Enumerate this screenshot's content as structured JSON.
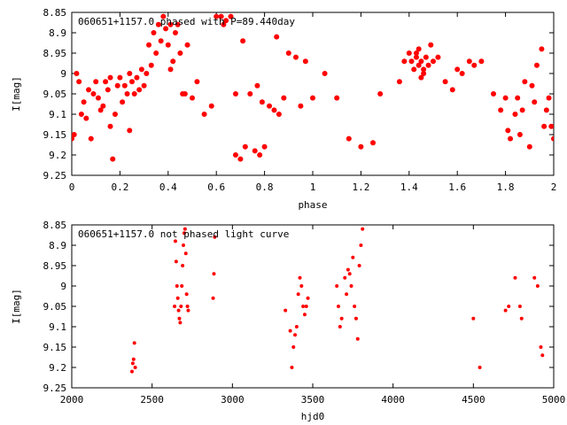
{
  "colors": {
    "points": "#ff0000",
    "axes": "#000000",
    "background": "#ffffff"
  },
  "chart_data": [
    {
      "type": "scatter",
      "title": "060651+1157.0 phased with P=89.440day",
      "xlabel": "phase",
      "ylabel": "I[mag]",
      "xlim": [
        0,
        2
      ],
      "ylim": [
        8.85,
        9.25
      ],
      "y_inverted": true,
      "grid": false,
      "xticks": [
        "0",
        "0.2",
        "0.4",
        "0.6",
        "0.8",
        "1",
        "1.2",
        "1.4",
        "1.6",
        "1.8",
        "2"
      ],
      "yticks": [
        "8.85",
        "8.9",
        "8.95",
        "9",
        "9.05",
        "9.1",
        "9.15",
        "9.2",
        "9.25"
      ],
      "x": [
        0.0,
        0.01,
        0.03,
        0.05,
        0.06,
        0.08,
        0.09,
        0.1,
        0.12,
        0.13,
        0.14,
        0.15,
        0.16,
        0.17,
        0.18,
        0.19,
        0.2,
        0.21,
        0.22,
        0.23,
        0.24,
        0.25,
        0.26,
        0.27,
        0.28,
        0.3,
        0.31,
        0.32,
        0.33,
        0.34,
        0.35,
        0.36,
        0.37,
        0.38,
        0.39,
        0.4,
        0.41,
        0.42,
        0.43,
        0.44,
        0.45,
        0.46,
        0.48,
        0.5,
        0.55,
        0.58,
        0.6,
        0.62,
        0.64,
        0.66,
        0.68,
        0.7,
        0.72,
        0.74,
        0.76,
        0.78,
        0.8,
        0.82,
        0.84,
        0.86,
        0.88,
        0.9,
        0.93,
        0.95,
        1.0,
        1.1,
        1.15,
        1.2,
        1.25,
        1.28,
        1.36,
        1.4,
        1.41,
        1.42,
        1.43,
        1.44,
        1.45,
        1.46,
        1.47,
        1.48,
        1.5,
        1.52,
        1.55,
        1.6,
        1.65,
        1.7,
        1.75,
        1.78,
        1.8,
        1.81,
        1.82,
        1.85,
        1.86,
        1.88,
        1.9,
        1.92,
        1.93,
        1.95,
        1.97,
        1.99,
        2.0,
        0.02,
        0.04,
        0.07,
        0.11,
        0.16,
        0.24,
        0.29,
        0.41,
        0.47,
        0.52,
        0.63,
        0.68,
        0.71,
        0.77,
        0.79,
        0.85,
        0.97,
        1.05,
        1.38,
        1.43,
        1.44,
        1.45,
        1.46,
        1.49,
        1.58,
        1.62,
        1.67,
        1.84,
        1.87,
        1.91,
        1.96,
        1.98
      ],
      "y": [
        9.16,
        9.15,
        9.02,
        9.07,
        9.11,
        9.16,
        9.05,
        9.02,
        9.09,
        9.08,
        9.02,
        9.04,
        9.13,
        9.21,
        9.1,
        9.03,
        9.01,
        9.07,
        9.03,
        9.05,
        9.0,
        9.02,
        9.05,
        9.01,
        9.04,
        9.03,
        9.0,
        8.93,
        8.98,
        8.9,
        8.95,
        8.88,
        8.92,
        8.86,
        8.89,
        8.93,
        8.88,
        8.97,
        8.9,
        8.88,
        8.95,
        9.05,
        8.93,
        9.06,
        9.1,
        9.08,
        8.86,
        8.86,
        8.87,
        8.86,
        9.2,
        9.21,
        9.18,
        9.05,
        9.19,
        9.2,
        9.18,
        9.08,
        9.09,
        9.1,
        9.06,
        8.95,
        8.96,
        9.08,
        9.06,
        9.06,
        9.16,
        9.18,
        9.17,
        9.05,
        9.02,
        8.95,
        8.97,
        8.99,
        8.96,
        8.94,
        8.97,
        9.0,
        8.96,
        8.98,
        8.97,
        8.96,
        9.02,
        8.99,
        8.97,
        8.97,
        9.05,
        9.09,
        9.06,
        9.14,
        9.16,
        9.06,
        9.15,
        9.02,
        9.18,
        9.07,
        8.98,
        8.94,
        9.09,
        9.13,
        9.16,
        9.0,
        9.1,
        9.04,
        9.06,
        9.01,
        9.14,
        8.99,
        8.99,
        9.05,
        9.02,
        8.88,
        9.05,
        8.92,
        9.03,
        9.07,
        8.91,
        8.97,
        9.0,
        8.97,
        8.95,
        8.98,
        9.01,
        8.99,
        8.93,
        9.04,
        9.0,
        8.98,
        9.1,
        9.09,
        9.03,
        9.13,
        9.06
      ]
    },
    {
      "type": "scatter",
      "title": "060651+1157.0 not phased light curve",
      "xlabel": "hjd0",
      "ylabel": "I[mag]",
      "xlim": [
        2000,
        5000
      ],
      "ylim": [
        8.85,
        9.25
      ],
      "y_inverted": true,
      "grid": false,
      "xticks": [
        "2000",
        "2500",
        "3000",
        "3500",
        "4000",
        "4500",
        "5000"
      ],
      "yticks": [
        "8.85",
        "8.9",
        "8.95",
        "9",
        "9.05",
        "9.1",
        "9.15",
        "9.2",
        "9.25"
      ],
      "x": [
        2375,
        2380,
        2385,
        2390,
        2395,
        2640,
        2645,
        2650,
        2655,
        2660,
        2665,
        2670,
        2675,
        2680,
        2685,
        2690,
        2695,
        2700,
        2705,
        2710,
        2715,
        2720,
        2725,
        2880,
        2885,
        2890,
        3330,
        3360,
        3370,
        3380,
        3390,
        3400,
        3410,
        3420,
        3430,
        3440,
        3450,
        3460,
        3470,
        3650,
        3660,
        3670,
        3680,
        3700,
        3710,
        3720,
        3730,
        3740,
        3750,
        3760,
        3770,
        3780,
        3790,
        3800,
        3810,
        4500,
        4540,
        4700,
        4720,
        4760,
        4790,
        4800,
        4880,
        4900,
        4920,
        4930
      ],
      "y": [
        9.21,
        9.19,
        9.18,
        9.14,
        9.2,
        9.05,
        8.89,
        8.94,
        9.0,
        9.03,
        9.06,
        9.08,
        9.09,
        9.05,
        9.0,
        8.95,
        8.9,
        8.87,
        8.86,
        8.92,
        9.02,
        9.05,
        9.06,
        9.03,
        8.97,
        8.88,
        9.06,
        9.11,
        9.2,
        9.15,
        9.12,
        9.1,
        9.02,
        8.98,
        9.0,
        9.05,
        9.07,
        9.05,
        9.03,
        9.0,
        9.05,
        9.1,
        9.08,
        8.98,
        9.02,
        8.96,
        8.97,
        9.0,
        8.93,
        9.05,
        9.08,
        9.13,
        8.95,
        8.9,
        8.86,
        9.08,
        9.2,
        9.06,
        9.05,
        8.98,
        9.05,
        9.08,
        8.98,
        9.0,
        9.15,
        9.17
      ]
    }
  ]
}
